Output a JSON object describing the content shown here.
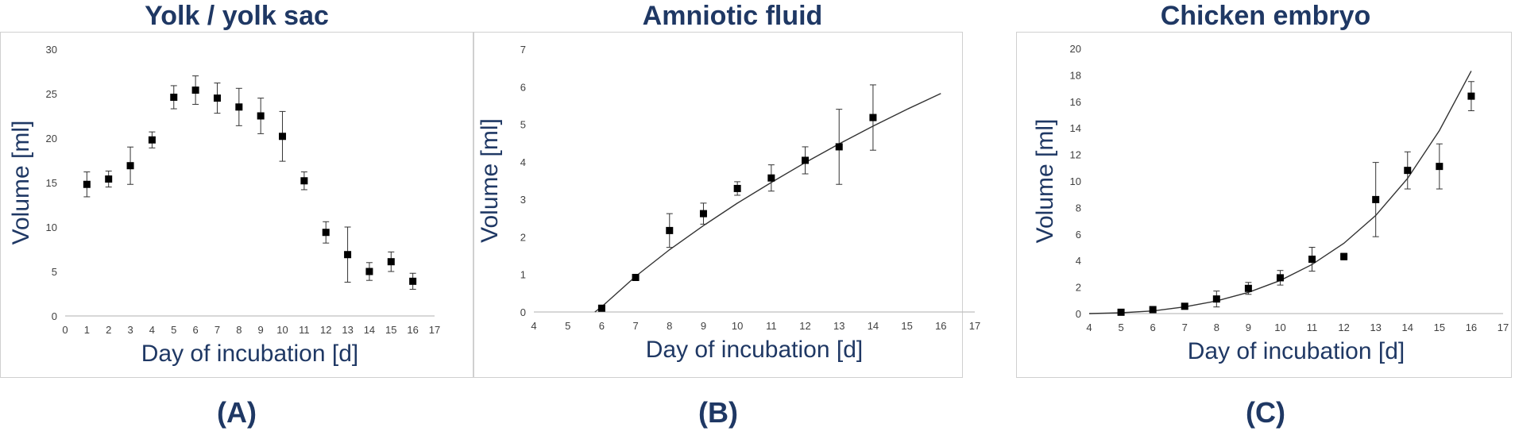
{
  "panels": [
    {
      "title": "Yolk / yolk sac",
      "letter": "(A)"
    },
    {
      "title": "Amniotic fluid",
      "letter": "(B)"
    },
    {
      "title": "Chicken embryo",
      "letter": "(C)"
    }
  ],
  "colors": {
    "title": "#1f3864",
    "axis_label": "#1f3864",
    "marker": "#000000",
    "tick_text": "#404040"
  },
  "chart_data": [
    {
      "type": "scatter",
      "title": "Yolk / yolk sac",
      "xlabel": "Day of incubation [d]",
      "ylabel": "Volume [ml]",
      "xlim": [
        0,
        17
      ],
      "ylim": [
        0,
        30
      ],
      "xticks": [
        0,
        1,
        2,
        3,
        4,
        5,
        6,
        7,
        8,
        9,
        10,
        11,
        12,
        13,
        14,
        15,
        16,
        17
      ],
      "yticks": [
        0,
        5,
        10,
        15,
        20,
        25,
        30
      ],
      "grid": false,
      "points": [
        {
          "x": 1,
          "y": 14.8,
          "err": 1.4
        },
        {
          "x": 2,
          "y": 15.4,
          "err": 0.9
        },
        {
          "x": 3,
          "y": 16.9,
          "err": 2.1
        },
        {
          "x": 4,
          "y": 19.8,
          "err": 0.9
        },
        {
          "x": 5,
          "y": 24.6,
          "err": 1.3
        },
        {
          "x": 6,
          "y": 25.4,
          "err": 1.6
        },
        {
          "x": 7,
          "y": 24.5,
          "err": 1.7
        },
        {
          "x": 8,
          "y": 23.5,
          "err": 2.1
        },
        {
          "x": 9,
          "y": 22.5,
          "err": 2.0
        },
        {
          "x": 10,
          "y": 20.2,
          "err": 2.8
        },
        {
          "x": 11,
          "y": 15.2,
          "err": 1.0
        },
        {
          "x": 12,
          "y": 9.4,
          "err": 1.2
        },
        {
          "x": 13,
          "y": 6.9,
          "err": 3.1
        },
        {
          "x": 14,
          "y": 5.0,
          "err": 1.0
        },
        {
          "x": 15,
          "y": 6.1,
          "err": 1.1
        },
        {
          "x": 16,
          "y": 3.9,
          "err": 0.9
        }
      ]
    },
    {
      "type": "scatter",
      "title": "Amniotic fluid",
      "xlabel": "Day of incubation [d]",
      "ylabel": "Volume [ml]",
      "xlim": [
        4,
        17
      ],
      "ylim": [
        0,
        7
      ],
      "xticks": [
        4,
        5,
        6,
        7,
        8,
        9,
        10,
        11,
        12,
        13,
        14,
        15,
        16,
        17
      ],
      "yticks": [
        0,
        1,
        2,
        3,
        4,
        5,
        6,
        7
      ],
      "grid": false,
      "points": [
        {
          "x": 6,
          "y": 0.1,
          "err": 0.05
        },
        {
          "x": 7,
          "y": 0.92,
          "err": 0.06
        },
        {
          "x": 8,
          "y": 2.17,
          "err": 0.45
        },
        {
          "x": 9,
          "y": 2.62,
          "err": 0.28
        },
        {
          "x": 10,
          "y": 3.29,
          "err": 0.18
        },
        {
          "x": 11,
          "y": 3.57,
          "err": 0.35
        },
        {
          "x": 12,
          "y": 4.04,
          "err": 0.36
        },
        {
          "x": 13,
          "y": 4.4,
          "err": 1.0
        },
        {
          "x": 14,
          "y": 5.18,
          "err": 0.87
        }
      ],
      "trendline": {
        "x_start": 5.8,
        "x_end": 16,
        "points": [
          [
            5.8,
            0.0
          ],
          [
            6,
            0.14
          ],
          [
            7,
            0.95
          ],
          [
            8,
            1.66
          ],
          [
            9,
            2.3
          ],
          [
            10,
            2.9
          ],
          [
            11,
            3.45
          ],
          [
            12,
            3.98
          ],
          [
            13,
            4.48
          ],
          [
            14,
            4.95
          ],
          [
            15,
            5.4
          ],
          [
            16,
            5.82
          ]
        ]
      }
    },
    {
      "type": "scatter",
      "title": "Chicken embryo",
      "xlabel": "Day of incubation [d]",
      "ylabel": "Volume [ml]",
      "xlim": [
        4,
        17
      ],
      "ylim": [
        0,
        20
      ],
      "xticks": [
        4,
        5,
        6,
        7,
        8,
        9,
        10,
        11,
        12,
        13,
        14,
        15,
        16,
        17
      ],
      "yticks": [
        0,
        2,
        4,
        6,
        8,
        10,
        12,
        14,
        16,
        18,
        20
      ],
      "grid": false,
      "points": [
        {
          "x": 5,
          "y": 0.1,
          "err": 0.05
        },
        {
          "x": 6,
          "y": 0.3,
          "err": 0.1
        },
        {
          "x": 7,
          "y": 0.55,
          "err": 0.1
        },
        {
          "x": 8,
          "y": 1.1,
          "err": 0.6
        },
        {
          "x": 9,
          "y": 1.9,
          "err": 0.45
        },
        {
          "x": 10,
          "y": 2.7,
          "err": 0.55
        },
        {
          "x": 11,
          "y": 4.1,
          "err": 0.9
        },
        {
          "x": 12,
          "y": 4.3,
          "err": 0.25
        },
        {
          "x": 13,
          "y": 8.6,
          "err": 2.8
        },
        {
          "x": 14,
          "y": 10.8,
          "err": 1.4
        },
        {
          "x": 15,
          "y": 11.1,
          "err": 1.7
        },
        {
          "x": 16,
          "y": 16.4,
          "err": 1.1
        }
      ],
      "trendline": {
        "x_start": 4,
        "x_end": 16,
        "points": [
          [
            4,
            0.0
          ],
          [
            5,
            0.06
          ],
          [
            6,
            0.2
          ],
          [
            7,
            0.5
          ],
          [
            8,
            0.95
          ],
          [
            9,
            1.6
          ],
          [
            10,
            2.5
          ],
          [
            11,
            3.7
          ],
          [
            12,
            5.3
          ],
          [
            13,
            7.4
          ],
          [
            14,
            10.2
          ],
          [
            15,
            13.8
          ],
          [
            16,
            18.3
          ]
        ]
      }
    }
  ]
}
